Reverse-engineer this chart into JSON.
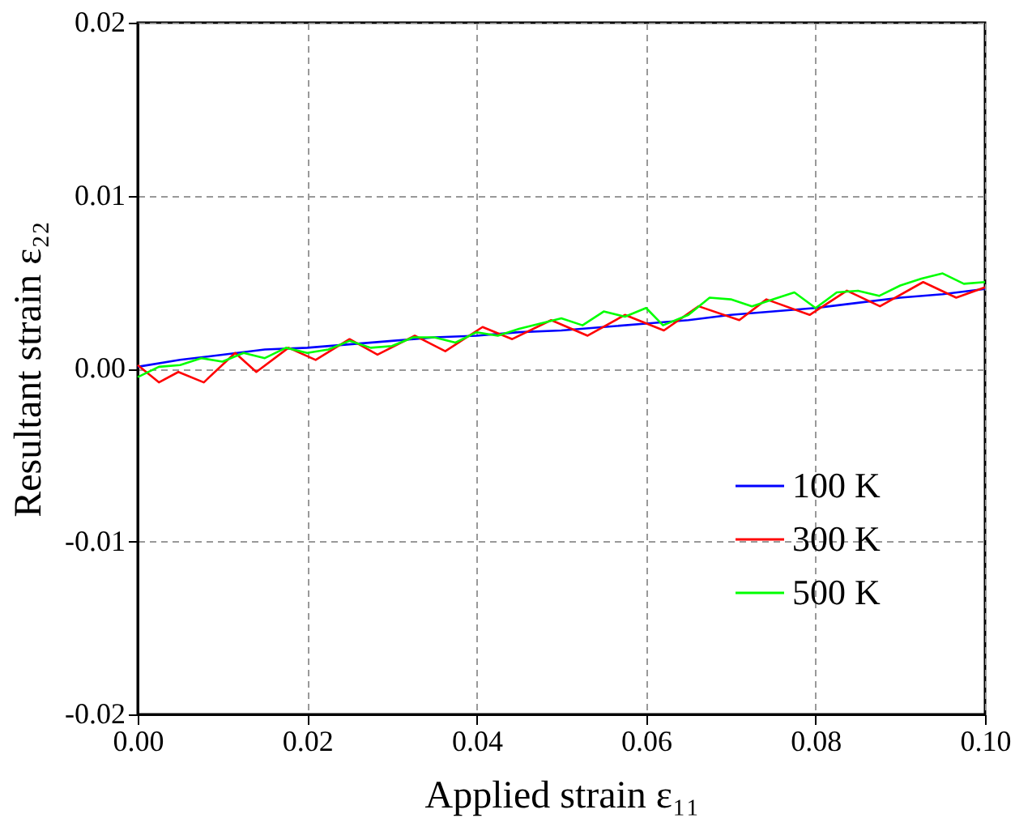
{
  "chart_data": {
    "type": "line",
    "xlabel": "Applied strain ε₁₁",
    "ylabel": "Resultant strain ε₂₂",
    "xlim": [
      0,
      0.1
    ],
    "ylim": [
      -0.02,
      0.02
    ],
    "xticks": [
      {
        "value": 0,
        "label": "0.00"
      },
      {
        "value": 0.02,
        "label": "0.02"
      },
      {
        "value": 0.04,
        "label": "0.04"
      },
      {
        "value": 0.06,
        "label": "0.06"
      },
      {
        "value": 0.08,
        "label": "0.08"
      },
      {
        "value": 0.1,
        "label": "0.10"
      }
    ],
    "yticks": [
      {
        "value": -0.02,
        "label": "-0.02"
      },
      {
        "value": -0.01,
        "label": "-0.01"
      },
      {
        "value": 0,
        "label": "0.00"
      },
      {
        "value": 0.01,
        "label": "0.01"
      },
      {
        "value": 0.02,
        "label": "0.02"
      }
    ],
    "grid": true,
    "legend": "bottom right",
    "line_style": "solid",
    "marker": "none",
    "series": [
      {
        "name": "100 K",
        "color": "#0000ff",
        "x": [
          0,
          0.005,
          0.01,
          0.015,
          0.02,
          0.025,
          0.03,
          0.035,
          0.04,
          0.045,
          0.05,
          0.055,
          0.06,
          0.065,
          0.07,
          0.075,
          0.08,
          0.085,
          0.09,
          0.095,
          0.1
        ],
        "values": [
          0.0001,
          0.0005,
          0.0008,
          0.0011,
          0.0012,
          0.0014,
          0.0016,
          0.0018,
          0.0019,
          0.0021,
          0.0022,
          0.0024,
          0.0026,
          0.0028,
          0.0031,
          0.0033,
          0.0035,
          0.0038,
          0.0041,
          0.0043,
          0.0046
        ]
      },
      {
        "name": "300 K",
        "color": "#ff0000",
        "x": [
          0,
          0.0025,
          0.0048,
          0.0078,
          0.0115,
          0.014,
          0.0178,
          0.021,
          0.025,
          0.0283,
          0.0327,
          0.0363,
          0.0407,
          0.0442,
          0.0488,
          0.0531,
          0.0575,
          0.0621,
          0.0662,
          0.071,
          0.0742,
          0.0793,
          0.0837,
          0.0876,
          0.0927,
          0.0966,
          0.1
        ],
        "values": [
          0.0002,
          -0.0008,
          -0.0002,
          -0.0008,
          0.0009,
          -0.0002,
          0.0012,
          0.0005,
          0.0017,
          0.0008,
          0.0019,
          0.001,
          0.0024,
          0.0017,
          0.0028,
          0.0019,
          0.0031,
          0.0022,
          0.0036,
          0.0028,
          0.004,
          0.0031,
          0.0045,
          0.0036,
          0.005,
          0.0041,
          0.0047
        ]
      },
      {
        "name": "500 K",
        "color": "#00ff00",
        "x": [
          0,
          0.0025,
          0.005,
          0.0075,
          0.01,
          0.0125,
          0.015,
          0.0175,
          0.02,
          0.0225,
          0.025,
          0.0275,
          0.03,
          0.0325,
          0.035,
          0.0375,
          0.04,
          0.0425,
          0.045,
          0.0475,
          0.05,
          0.0525,
          0.055,
          0.0575,
          0.06,
          0.062,
          0.065,
          0.0675,
          0.07,
          0.0725,
          0.075,
          0.0775,
          0.08,
          0.0825,
          0.085,
          0.0875,
          0.09,
          0.0925,
          0.095,
          0.0975,
          0.1
        ],
        "values": [
          -0.0005,
          0.0001,
          0.0002,
          0.0006,
          0.0004,
          0.0009,
          0.0006,
          0.0012,
          0.0009,
          0.0011,
          0.0016,
          0.0012,
          0.0013,
          0.0018,
          0.0018,
          0.0015,
          0.0021,
          0.0019,
          0.0023,
          0.0026,
          0.0029,
          0.0025,
          0.0033,
          0.003,
          0.0035,
          0.0025,
          0.0031,
          0.0041,
          0.004,
          0.0036,
          0.004,
          0.0044,
          0.0035,
          0.0044,
          0.0045,
          0.0042,
          0.0048,
          0.0052,
          0.0055,
          0.0049,
          0.005
        ]
      }
    ]
  }
}
